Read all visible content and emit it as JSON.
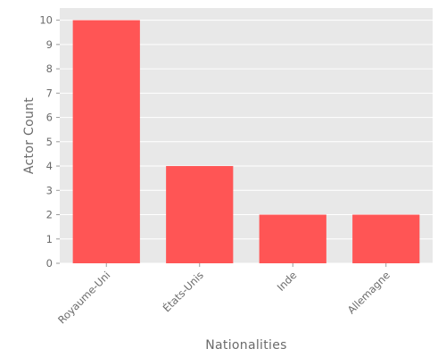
{
  "chart_data": {
    "type": "bar",
    "title": "",
    "xlabel": "Nationalities",
    "ylabel": "Actor Count",
    "categories": [
      "Royaume-Uni",
      "États-Unis",
      "Inde",
      "Allemagne"
    ],
    "values": [
      10,
      4,
      2,
      2
    ],
    "ylim": [
      0,
      10.5
    ],
    "yticks": [
      0,
      1,
      2,
      3,
      4,
      5,
      6,
      7,
      8,
      9,
      10
    ],
    "grid": true,
    "legend": "none",
    "bar_color": "#ff5555",
    "panel_background": "#e8e8e8",
    "gridline_color": "#ffffff",
    "tick_label_rotation": "45 degrees"
  }
}
